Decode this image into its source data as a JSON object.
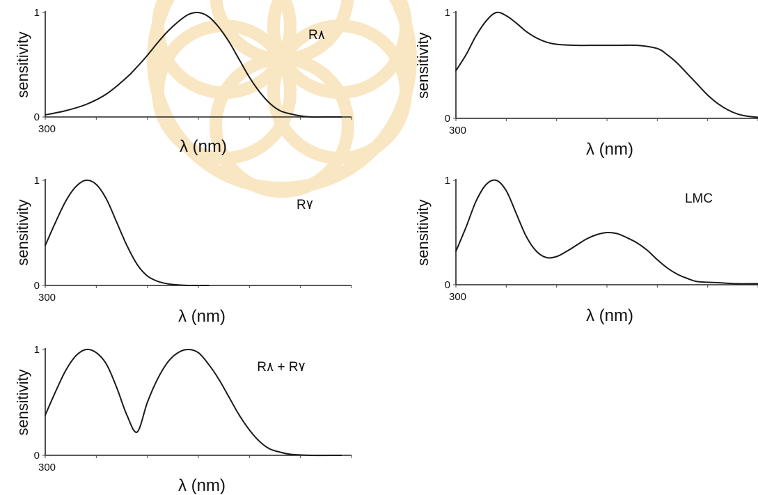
{
  "figure": {
    "watermark_color": "#f3c97a"
  },
  "chart_data": [
    {
      "id": "r8",
      "type": "line",
      "panel_label": "R٨",
      "ylabel": "sensitivity",
      "xlabel": "λ (nm)",
      "x_tick_label": "300",
      "y_tick_labels": [
        "0",
        "1"
      ],
      "ylim": [
        0,
        1
      ],
      "xlim": [
        300,
        600
      ],
      "grid": false,
      "series": [
        {
          "x": [
            300,
            320,
            340,
            360,
            380,
            390,
            400,
            410,
            420,
            430,
            440,
            450,
            460,
            470,
            480,
            490,
            500,
            510,
            520,
            530,
            540,
            550,
            560,
            575,
            590
          ],
          "y": [
            0.02,
            0.06,
            0.12,
            0.22,
            0.38,
            0.48,
            0.59,
            0.71,
            0.82,
            0.91,
            0.98,
            1.0,
            0.96,
            0.86,
            0.72,
            0.55,
            0.38,
            0.24,
            0.13,
            0.06,
            0.03,
            0.01,
            0.0,
            0.0,
            0.0
          ]
        }
      ]
    },
    {
      "id": "r7",
      "type": "line",
      "panel_label": "R٧",
      "ylabel": "sensitivity",
      "xlabel": "λ (nm)",
      "x_tick_label": "300",
      "y_tick_labels": [
        "0",
        "1"
      ],
      "ylim": [
        0,
        1
      ],
      "xlim": [
        300,
        600
      ],
      "grid": false,
      "series": [
        {
          "x": [
            300,
            310,
            320,
            330,
            340,
            350,
            360,
            370,
            380,
            390,
            400,
            410,
            420,
            430,
            440,
            460
          ],
          "y": [
            0.38,
            0.6,
            0.8,
            0.94,
            1.0,
            0.96,
            0.82,
            0.6,
            0.38,
            0.2,
            0.09,
            0.04,
            0.015,
            0.005,
            0.0,
            0.0
          ]
        }
      ]
    },
    {
      "id": "r8r7",
      "type": "line",
      "panel_label": "R٨ + R٧",
      "ylabel": "sensitivity",
      "xlabel": "λ (nm)",
      "x_tick_label": "300",
      "y_tick_labels": [
        "0",
        "1"
      ],
      "ylim": [
        0,
        1
      ],
      "xlim": [
        300,
        600
      ],
      "grid": false,
      "series": [
        {
          "x": [
            300,
            310,
            320,
            330,
            340,
            350,
            360,
            370,
            380,
            390,
            400,
            410,
            420,
            430,
            440,
            450,
            460,
            470,
            480,
            490,
            500,
            510,
            520,
            530,
            540,
            560,
            590
          ],
          "y": [
            0.38,
            0.6,
            0.8,
            0.94,
            1.0,
            0.97,
            0.86,
            0.64,
            0.38,
            0.22,
            0.5,
            0.72,
            0.88,
            0.97,
            1.0,
            0.97,
            0.86,
            0.72,
            0.55,
            0.38,
            0.24,
            0.13,
            0.06,
            0.03,
            0.01,
            0.0,
            0.0
          ]
        }
      ]
    },
    {
      "id": "combined",
      "type": "line",
      "panel_label": "",
      "ylabel": "sensitivity",
      "xlabel": "λ (nm)",
      "x_tick_label": "300",
      "y_tick_labels": [
        "0",
        "1"
      ],
      "ylim": [
        0,
        1
      ],
      "xlim": [
        300,
        600
      ],
      "grid": false,
      "series": [
        {
          "x": [
            300,
            310,
            320,
            330,
            340,
            350,
            360,
            370,
            380,
            390,
            400,
            420,
            440,
            460,
            480,
            500,
            510,
            520,
            530,
            540,
            550,
            560,
            570,
            580,
            590,
            600
          ],
          "y": [
            0.45,
            0.6,
            0.78,
            0.92,
            1.0,
            0.97,
            0.9,
            0.82,
            0.76,
            0.72,
            0.7,
            0.69,
            0.69,
            0.69,
            0.69,
            0.66,
            0.6,
            0.52,
            0.42,
            0.32,
            0.22,
            0.14,
            0.08,
            0.04,
            0.02,
            0.01
          ]
        }
      ]
    },
    {
      "id": "lmc",
      "type": "line",
      "panel_label": "LMC",
      "ylabel": "sensitivity",
      "xlabel": "λ (nm)",
      "x_tick_label": "300",
      "y_tick_labels": [
        "0",
        "1"
      ],
      "ylim": [
        0,
        1
      ],
      "xlim": [
        300,
        600
      ],
      "grid": false,
      "series": [
        {
          "x": [
            300,
            310,
            320,
            330,
            340,
            350,
            360,
            370,
            380,
            390,
            400,
            410,
            420,
            430,
            440,
            450,
            460,
            470,
            480,
            490,
            500,
            510,
            520,
            530,
            540,
            560,
            580,
            600
          ],
          "y": [
            0.32,
            0.55,
            0.8,
            0.96,
            1.0,
            0.9,
            0.68,
            0.46,
            0.32,
            0.26,
            0.27,
            0.32,
            0.38,
            0.44,
            0.48,
            0.5,
            0.49,
            0.45,
            0.4,
            0.33,
            0.24,
            0.16,
            0.1,
            0.06,
            0.03,
            0.02,
            0.01,
            0.01
          ]
        }
      ]
    }
  ]
}
